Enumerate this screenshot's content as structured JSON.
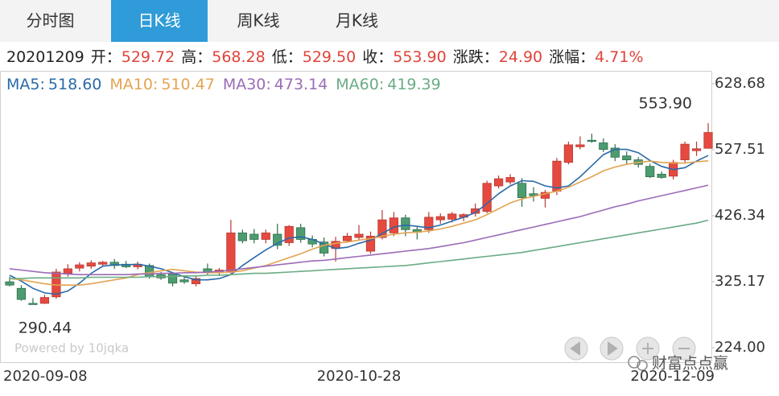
{
  "tabs": {
    "items": [
      "分时图",
      "日K线",
      "周K线",
      "月K线"
    ],
    "active": 1
  },
  "quote": {
    "date": "20201209",
    "items": [
      {
        "label": "开：",
        "value": "529.72"
      },
      {
        "label": "高：",
        "value": "568.28"
      },
      {
        "label": "低：",
        "value": "529.50"
      },
      {
        "label": "收：",
        "value": "553.90"
      },
      {
        "label": "涨跌：",
        "value": "24.90"
      },
      {
        "label": "涨幅：",
        "value": "4.71%"
      }
    ]
  },
  "watermarks": [
    "Powered by 10jqka",
    "财富点点赢"
  ],
  "chart_data": {
    "type": "candlestick",
    "categories": [
      "2020-09-08",
      null,
      null,
      null,
      null,
      null,
      null,
      null,
      null,
      null,
      null,
      null,
      null,
      null,
      null,
      null,
      null,
      null,
      null,
      null,
      null,
      null,
      null,
      null,
      null,
      null,
      null,
      null,
      null,
      null,
      "2020-10-28",
      null,
      null,
      null,
      null,
      null,
      null,
      null,
      null,
      null,
      null,
      null,
      null,
      null,
      null,
      null,
      null,
      null,
      null,
      null,
      null,
      null,
      null,
      null,
      null,
      null,
      null,
      null,
      null,
      null,
      "2020-12-09"
    ],
    "open": [
      325,
      315,
      292,
      292,
      302,
      338,
      346,
      349,
      352,
      355,
      352,
      348,
      350,
      336,
      337,
      328,
      322,
      345,
      340,
      340,
      400,
      398,
      390,
      398,
      385,
      408,
      390,
      386,
      376,
      388,
      393,
      372,
      393,
      400,
      423,
      405,
      405,
      420,
      421,
      424,
      430,
      433,
      472,
      478,
      476,
      460,
      453,
      464,
      508,
      532,
      542,
      538,
      530,
      518,
      512,
      502,
      490,
      487,
      512,
      526,
      529.72
    ],
    "high": [
      333,
      320,
      300,
      305,
      345,
      352,
      355,
      358,
      357,
      360,
      357,
      356,
      353,
      340,
      340,
      332,
      333,
      353,
      346,
      420,
      405,
      406,
      405,
      414,
      412,
      414,
      396,
      393,
      394,
      400,
      412,
      402,
      435,
      432,
      428,
      410,
      432,
      430,
      432,
      430,
      445,
      480,
      488,
      490,
      484,
      470,
      466,
      515,
      540,
      548,
      552,
      545,
      536,
      525,
      516,
      506,
      494,
      512,
      540,
      540,
      568.28
    ],
    "low": [
      318,
      296,
      290.44,
      291,
      299,
      333,
      341,
      345,
      349,
      345,
      346,
      344,
      330,
      328,
      318,
      322,
      318,
      336,
      334,
      335,
      384,
      384,
      384,
      375,
      380,
      385,
      378,
      364,
      356,
      385,
      388,
      368,
      390,
      395,
      395,
      390,
      400,
      414,
      416,
      418,
      425,
      430,
      468,
      474,
      440,
      448,
      439,
      458,
      505,
      528,
      538,
      524,
      510,
      506,
      500,
      484,
      483,
      482,
      508,
      518,
      529.5
    ],
    "close": [
      320,
      298,
      291,
      301,
      340,
      345,
      351,
      354,
      355,
      350,
      348,
      352,
      333,
      331,
      323,
      325,
      330,
      340,
      343,
      400,
      388,
      390,
      400,
      381,
      410,
      390,
      383,
      369,
      387,
      395,
      398,
      395,
      420,
      423,
      405,
      401,
      424,
      425,
      429,
      428,
      437,
      476,
      483,
      485,
      454,
      457,
      462,
      510,
      535,
      535,
      541,
      528,
      516,
      512,
      505,
      486,
      485,
      508,
      536,
      529,
      553.9
    ],
    "up_color": "#e5493f",
    "down_color": "#4d9c70",
    "series": [
      {
        "name": "MA5:",
        "value_label": "518.60",
        "color": "#2a6aa8",
        "values": [
          335,
          326,
          315,
          308,
          306,
          311,
          323,
          338,
          349,
          351,
          351,
          352,
          349,
          345,
          339,
          333,
          328,
          328,
          330,
          336,
          350,
          362,
          374,
          384,
          392,
          394,
          390,
          383,
          376,
          378,
          384,
          389,
          399,
          409,
          412,
          410,
          408,
          412,
          418,
          424,
          431,
          445,
          460,
          472,
          480,
          479,
          472,
          469,
          472,
          486,
          503,
          520,
          528,
          528,
          523,
          511,
          502,
          497,
          500,
          510,
          518.6
        ]
      },
      {
        "name": "MA10:",
        "value_label": "510.47",
        "color": "#e3a452",
        "values": [
          330,
          328,
          325,
          322,
          320,
          320,
          320,
          322,
          325,
          328,
          331,
          336,
          339,
          342,
          344,
          342,
          340,
          339,
          339,
          340,
          342,
          346,
          350,
          356,
          362,
          368,
          375,
          381,
          384,
          386,
          389,
          391,
          395,
          398,
          400,
          401,
          403,
          406,
          410,
          415,
          420,
          428,
          437,
          446,
          452,
          456,
          460,
          464,
          470,
          478,
          486,
          495,
          501,
          505,
          508,
          510,
          508,
          507,
          507,
          509,
          510.47
        ]
      },
      {
        "name": "MA30:",
        "value_label": "473.14",
        "color": "#9b6cb8",
        "values": [
          345,
          343,
          341,
          339,
          338,
          337,
          336,
          336,
          336,
          336,
          336,
          337,
          337,
          338,
          338,
          339,
          339,
          340,
          341,
          343,
          345,
          347,
          349,
          351,
          353,
          355,
          357,
          358,
          360,
          362,
          364,
          366,
          368,
          370,
          372,
          374,
          376,
          379,
          382,
          385,
          389,
          393,
          397,
          401,
          405,
          409,
          413,
          417,
          421,
          425,
          430,
          435,
          440,
          444,
          449,
          453,
          457,
          461,
          465,
          469,
          473.14
        ]
      },
      {
        "name": "MA60:",
        "value_label": "419.39",
        "color": "#6aac84",
        "values": [
          330,
          330,
          331,
          331,
          331,
          331,
          331,
          332,
          332,
          332,
          332,
          332,
          333,
          333,
          333,
          334,
          334,
          335,
          335,
          336,
          337,
          338,
          338,
          339,
          340,
          341,
          342,
          343,
          344,
          345,
          346,
          347,
          348,
          349,
          350,
          352,
          354,
          356,
          358,
          360,
          362,
          364,
          366,
          368,
          370,
          373,
          376,
          379,
          382,
          385,
          388,
          391,
          394,
          397,
          400,
          403,
          406,
          409,
          412,
          415,
          419.39
        ]
      }
    ],
    "annotations": [
      "553.90",
      "290.44"
    ],
    "ylim": [
      224,
      628.68
    ],
    "yticks": [
      {
        "value": 224,
        "label": "224.00"
      },
      325.17,
      426.34,
      527.51,
      628.68
    ]
  }
}
